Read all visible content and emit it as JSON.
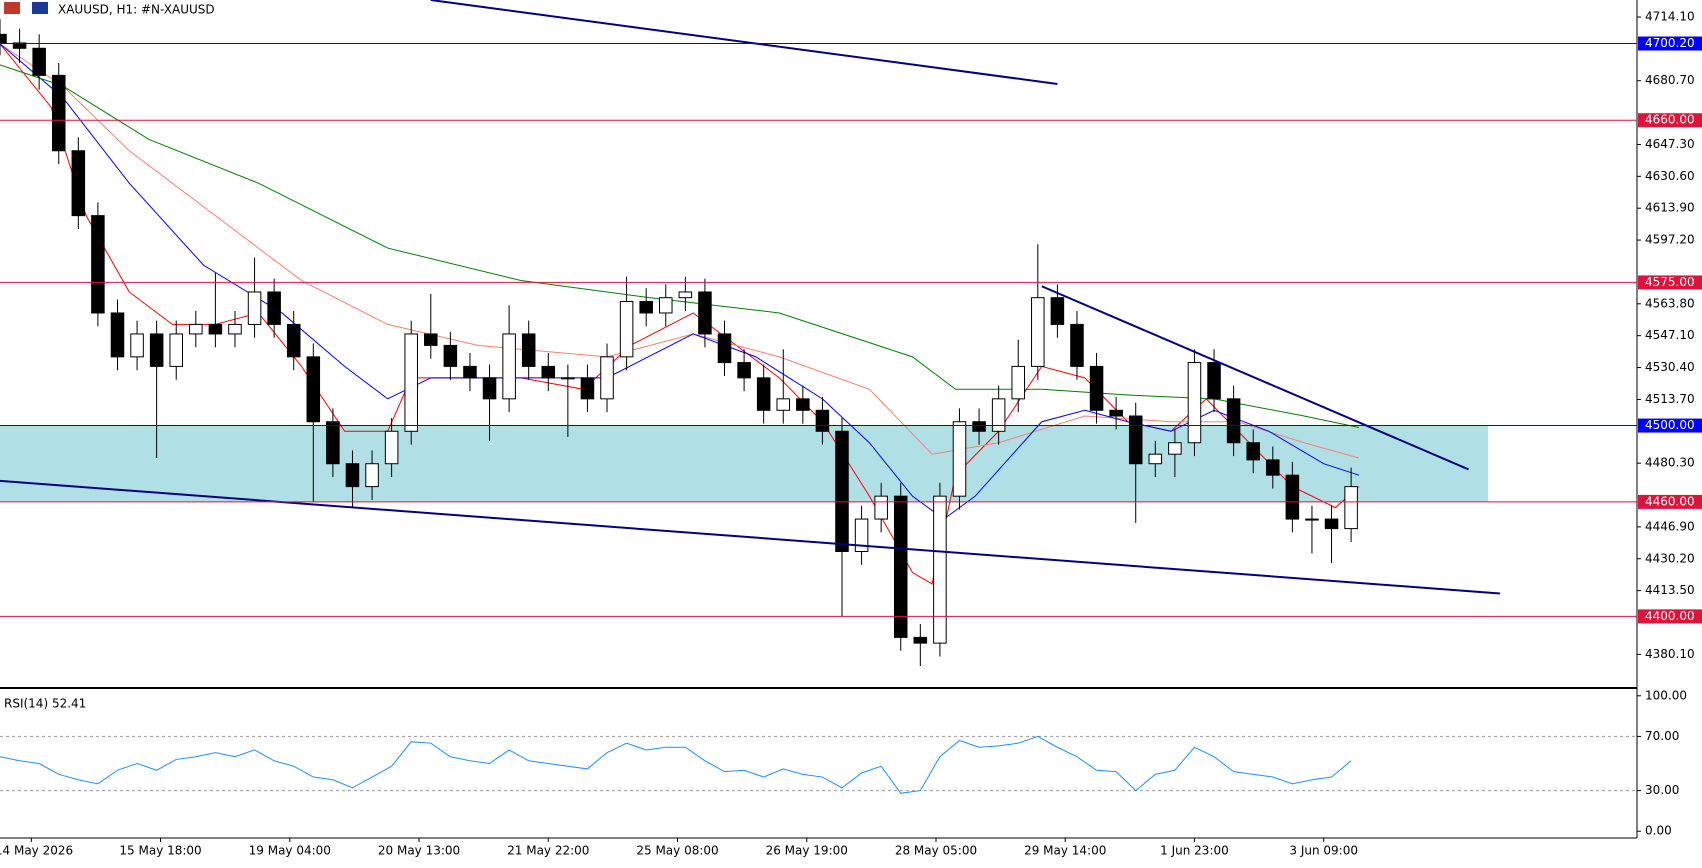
{
  "chart_data": {
    "type": "candlestick",
    "title": "XAUUSD, H1:  #N-XAUUSD",
    "xlim": [
      0,
      418
    ],
    "ylim": [
      4363,
      4723
    ],
    "yticks": [
      {
        "value": 4714.1,
        "label": "4714.10"
      },
      {
        "value": 4680.7,
        "label": "4680.70"
      },
      {
        "value": 4647.3,
        "label": "4647.30"
      },
      {
        "value": 4630.6,
        "label": "4630.60"
      },
      {
        "value": 4613.9,
        "label": "4613.90"
      },
      {
        "value": 4597.2,
        "label": "4597.20"
      },
      {
        "value": 4563.8,
        "label": "4563.80"
      },
      {
        "value": 4547.1,
        "label": "4547.10"
      },
      {
        "value": 4530.4,
        "label": "4530.40"
      },
      {
        "value": 4513.7,
        "label": "4513.70"
      },
      {
        "value": 4480.3,
        "label": "4480.30"
      },
      {
        "value": 4446.9,
        "label": "4446.90"
      },
      {
        "value": 4430.2,
        "label": "4430.20"
      },
      {
        "value": 4413.5,
        "label": "4413.50"
      },
      {
        "value": 4380.1,
        "label": "4380.10"
      }
    ],
    "xticks": [
      {
        "value": 8,
        "label": "14 May 2026"
      },
      {
        "value": 41,
        "label": "15 May 18:00"
      },
      {
        "value": 74,
        "label": "19 May 04:00"
      },
      {
        "value": 107,
        "label": "20 May 13:00"
      },
      {
        "value": 140,
        "label": "21 May 22:00"
      },
      {
        "value": 173,
        "label": "25 May 08:00"
      },
      {
        "value": 206,
        "label": "26 May 19:00"
      },
      {
        "value": 239,
        "label": "28 May 05:00"
      },
      {
        "value": 272,
        "label": "29 May 14:00"
      },
      {
        "value": 305,
        "label": "1 Jun 23:00"
      },
      {
        "value": 338,
        "label": "3 Jun 09:00"
      }
    ],
    "x": [
      0,
      5,
      10,
      15,
      20,
      25,
      30,
      35,
      40,
      45,
      50,
      55,
      60,
      65,
      70,
      75,
      80,
      85,
      90,
      95,
      100,
      105,
      110,
      115,
      120,
      125,
      130,
      135,
      140,
      145,
      150,
      155,
      160,
      165,
      170,
      175,
      180,
      185,
      190,
      195,
      200,
      205,
      210,
      215,
      220,
      225,
      230,
      235,
      240,
      245,
      250,
      255,
      260,
      265,
      270,
      275,
      280,
      285,
      290,
      295,
      300,
      305,
      310,
      315,
      320,
      325,
      330,
      335,
      340,
      345
    ],
    "open": [
      4705,
      4700.5,
      4697.7,
      4683.5,
      4644,
      4610,
      4559,
      4536,
      4548,
      4531,
      4548,
      4553,
      4548,
      4553,
      4570,
      4553,
      4536,
      4502,
      4480,
      4468,
      4480,
      4497,
      4548,
      4542,
      4531,
      4525,
      4514,
      4548,
      4531,
      4525,
      4525,
      4514,
      4536,
      4565,
      4559,
      4567,
      4570,
      4548,
      4533,
      4525,
      4508,
      4514,
      4508,
      4497,
      4434,
      4451,
      4463,
      4389,
      4386,
      4463,
      4502,
      4497,
      4514,
      4531,
      4567,
      4553,
      4531,
      4508,
      4505,
      4480,
      4485,
      4491,
      4533,
      4514,
      4491,
      4482,
      4474,
      4451,
      4451,
      4446
    ],
    "high": [
      4713,
      4708,
      4705,
      4690,
      4651,
      4617,
      4566,
      4555,
      4555,
      4555,
      4560,
      4580,
      4560,
      4588,
      4577,
      4560,
      4543,
      4509,
      4487,
      4487,
      4504,
      4555,
      4569,
      4549,
      4538,
      4532,
      4563,
      4555,
      4538,
      4532,
      4532,
      4543,
      4578,
      4572,
      4574,
      4578,
      4577,
      4555,
      4540,
      4532,
      4540,
      4521,
      4515,
      4504,
      4458,
      4470,
      4470,
      4396,
      4470,
      4509,
      4509,
      4521,
      4545,
      4595,
      4574,
      4560,
      4538,
      4515,
      4512,
      4492,
      4498,
      4540,
      4540,
      4521,
      4498,
      4489,
      4481,
      4458,
      4458,
      4478
    ],
    "low": [
      4694,
      4690,
      4676,
      4637,
      4603,
      4552,
      4529,
      4529,
      4483,
      4524,
      4541,
      4541,
      4541,
      4546,
      4546,
      4529,
      4460,
      4473,
      4457,
      4461,
      4473,
      4490,
      4535,
      4524,
      4518,
      4492,
      4507,
      4524,
      4518,
      4494,
      4507,
      4507,
      4529,
      4552,
      4552,
      4560,
      4541,
      4526,
      4518,
      4501,
      4501,
      4501,
      4490,
      4400,
      4427,
      4444,
      4382,
      4374,
      4379,
      4456,
      4490,
      4490,
      4507,
      4524,
      4546,
      4524,
      4501,
      4498,
      4449,
      4473,
      4473,
      4484,
      4507,
      4484,
      4475,
      4467,
      4444,
      4433,
      4428,
      4439
    ],
    "close": [
      4700.5,
      4697.7,
      4683.5,
      4644,
      4610,
      4559,
      4536,
      4548,
      4531,
      4548,
      4553,
      4548,
      4553,
      4570,
      4553,
      4536,
      4502,
      4480,
      4468,
      4480,
      4497,
      4548,
      4542,
      4531,
      4525,
      4514,
      4548,
      4531,
      4525,
      4525,
      4514,
      4536,
      4565,
      4559,
      4567,
      4570,
      4548,
      4533,
      4525,
      4508,
      4514,
      4508,
      4497,
      4434,
      4451,
      4463,
      4389,
      4386,
      4463,
      4502,
      4497,
      4514,
      4531,
      4567,
      4553,
      4531,
      4508,
      4505,
      4480,
      4485,
      4491,
      4533,
      4514,
      4491,
      4482,
      4474,
      4451,
      4451,
      4446,
      4468
    ],
    "candle_color": "#000000",
    "overlays": [
      {
        "color": "#ff0000",
        "x": [
          0,
          13,
          22,
          33,
          44,
          55,
          66,
          77,
          88,
          99,
          105,
          116,
          133,
          149,
          161,
          177,
          188,
          199,
          210,
          222,
          233,
          238,
          244,
          255,
          266,
          277,
          288,
          299,
          308,
          319,
          330,
          341,
          347
        ],
        "values": [
          4700,
          4667,
          4610,
          4570,
          4553,
          4553,
          4559,
          4531,
          4497,
          4497,
          4525,
          4525,
          4525,
          4519,
          4542,
          4559,
          4542,
          4525,
          4502,
          4463,
          4423,
          4417,
          4474,
          4497,
          4531,
          4525,
          4502,
          4497,
          4514,
          4491,
          4468,
          4457,
          4468
        ]
      },
      {
        "color": "#fa8072",
        "x": [
          0,
          16,
          33,
          55,
          77,
          99,
          122,
          155,
          177,
          199,
          222,
          238,
          255,
          277,
          299,
          316,
          333,
          347
        ],
        "values": [
          4700,
          4678,
          4644,
          4610,
          4576,
          4553,
          4542,
          4536,
          4548,
          4536,
          4519,
          4485,
          4491,
          4505,
          4502,
          4502,
          4491,
          4483
        ]
      },
      {
        "color": "#0000ff",
        "x": [
          0,
          16,
          33,
          52,
          72,
          88,
          99,
          110,
          133,
          155,
          177,
          193,
          210,
          222,
          233,
          241,
          249,
          266,
          277,
          288,
          299,
          310,
          324,
          338,
          347
        ],
        "values": [
          4700,
          4672,
          4627,
          4584,
          4559,
          4531,
          4514,
          4525,
          4525,
          4525,
          4548,
          4536,
          4514,
          4491,
          4463,
          4451,
          4463,
          4502,
          4508,
          4502,
          4497,
          4508,
          4497,
          4480,
          4474
        ]
      },
      {
        "color": "#008000",
        "x": [
          0,
          16,
          38,
          66,
          99,
          133,
          166,
          199,
          233,
          244,
          266,
          288,
          310,
          333,
          347
        ],
        "values": [
          4689,
          4678,
          4650,
          4627,
          4593,
          4576,
          4567,
          4559,
          4536,
          4519,
          4519,
          4516,
          4514,
          4505,
          4499
        ]
      }
    ],
    "levels": [
      {
        "value": 4700.2,
        "label": "4700.20",
        "color": "#0000ff"
      },
      {
        "value": 4660,
        "label": "4660.00",
        "color": "#dc143c"
      },
      {
        "value": 4575,
        "label": "4575.00",
        "color": "#dc143c"
      },
      {
        "value": 4500,
        "label": "4500.00",
        "color": "#0000ff"
      },
      {
        "value": 4460,
        "label": "4460.00",
        "color": "#dc143c"
      },
      {
        "value": 4400,
        "label": "4400.00",
        "color": "#dc143c"
      }
    ],
    "zone": {
      "x": [
        0,
        380
      ],
      "values": [
        4460,
        4500
      ],
      "color": "#b0e0e6"
    },
    "trendlines": [
      {
        "x": [
          110,
          270
        ],
        "values": [
          4723,
          4679
        ],
        "color": "#000080"
      },
      {
        "x": [
          266,
          375
        ],
        "values": [
          4573,
          4477
        ],
        "color": "#000080"
      },
      {
        "x": [
          0,
          383
        ],
        "values": [
          4471,
          4412
        ],
        "color": "#000080"
      }
    ],
    "rsi": {
      "label": "RSI(14) 52.41",
      "color": "#1e90ff",
      "ylim": [
        -5,
        105
      ],
      "yticks": [
        {
          "value": 100,
          "label": "100.00"
        },
        {
          "value": 70,
          "label": "70.00"
        },
        {
          "value": 30,
          "label": "30.00"
        },
        {
          "value": 0,
          "label": "0.00"
        }
      ],
      "levels": [
        70,
        30
      ],
      "values": [
        55,
        52,
        50,
        42,
        38,
        35,
        45,
        50,
        45,
        53,
        55,
        58,
        55,
        60,
        52,
        48,
        40,
        38,
        32,
        40,
        48,
        66,
        65,
        55,
        52,
        50,
        60,
        52,
        50,
        48,
        46,
        58,
        65,
        60,
        62,
        62,
        52,
        44,
        45,
        40,
        46,
        42,
        40,
        32,
        43,
        48,
        28,
        30,
        55,
        67,
        62,
        63,
        65,
        70,
        62,
        55,
        45,
        44,
        30,
        42,
        45,
        62,
        55,
        44,
        42,
        40,
        35,
        38,
        40,
        52
      ]
    }
  }
}
